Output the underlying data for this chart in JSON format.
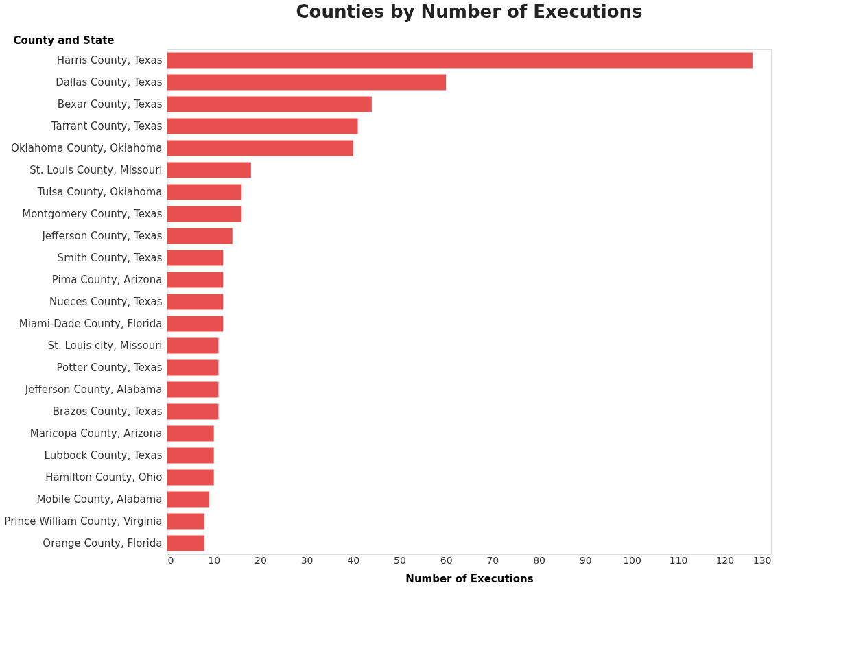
{
  "chart_data": {
    "type": "bar",
    "orientation": "horizontal",
    "title": "Counties by Number of Executions",
    "xlabel": "Number of Executions",
    "ylabel": "County and State",
    "categories": [
      "Harris County, Texas",
      "Dallas County, Texas",
      "Bexar County, Texas",
      "Tarrant County, Texas",
      "Oklahoma County, Oklahoma",
      "St. Louis County, Missouri",
      "Tulsa County, Oklahoma",
      "Montgomery County, Texas",
      "Jefferson County, Texas",
      "Smith County, Texas",
      "Pima County, Arizona",
      "Nueces County, Texas",
      "Miami-Dade County, Florida",
      "St. Louis city, Missouri",
      "Potter County, Texas",
      "Jefferson County, Alabama",
      "Brazos County, Texas",
      "Maricopa County, Arizona",
      "Lubbock County, Texas",
      "Hamilton County, Ohio",
      "Mobile County, Alabama",
      "Prince William County, Virginia",
      "Orange County, Florida"
    ],
    "values": [
      126,
      60,
      44,
      41,
      40,
      18,
      16,
      16,
      14,
      12,
      12,
      12,
      12,
      11,
      11,
      11,
      11,
      10,
      10,
      10,
      9,
      8,
      8
    ],
    "color": "#e8504f",
    "xlim": [
      0,
      130
    ],
    "xticks": [
      0,
      10,
      20,
      30,
      40,
      50,
      60,
      70,
      80,
      90,
      100,
      110,
      120,
      130
    ],
    "grid": false
  }
}
